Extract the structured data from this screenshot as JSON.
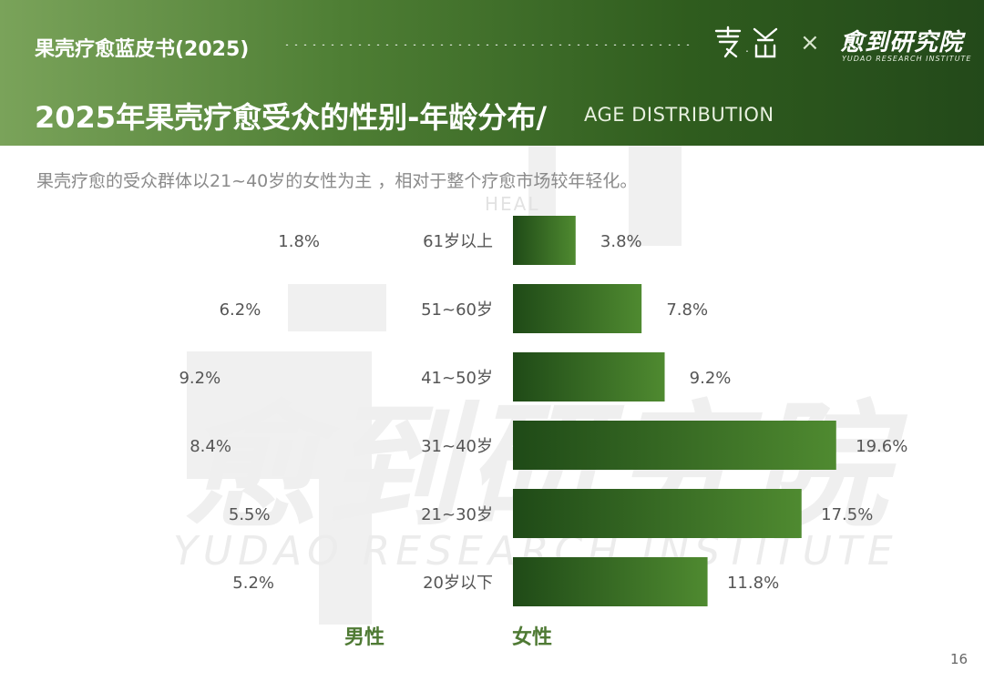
{
  "header": {
    "report_title": "果壳疗愈蓝皮书(2025)",
    "logo_partner_mark": "零愈",
    "logo_separator": "×",
    "logo_brand": "愈到研究院",
    "logo_brand_sub": "YUDAO RESEARCH INSTITUTE",
    "page_title": "2025年果壳疗愈受众的性别-年龄分布/",
    "page_title_en": "AGE DISTRIBUTION"
  },
  "subtitle": "果壳疗愈的受众群体以21~40岁的女性为主 ，相对于整个疗愈市场较年轻化。",
  "watermark": {
    "cn": "愈到研究院",
    "en": "YUDAO RESEARCH INSTITUTE",
    "heal": "HEAL"
  },
  "legend": {
    "male": "男性",
    "female": "女性"
  },
  "page_number": "16",
  "colors": {
    "bar_dark": "#1f4a17",
    "bar_light": "#4f8a30",
    "label_text": "#555555",
    "legend_text": "#4f7a34"
  },
  "chart_data": {
    "type": "bar",
    "categories": [
      "61岁以上",
      "51~60岁",
      "41~50岁",
      "31~40岁",
      "21~30岁",
      "20岁以下"
    ],
    "series": [
      {
        "name": "男性",
        "values": [
          1.8,
          6.2,
          9.2,
          8.4,
          5.5,
          5.2
        ],
        "labels": [
          "1.8%",
          "6.2%",
          "9.2%",
          "8.4%",
          "5.5%",
          "5.2%"
        ]
      },
      {
        "name": "女性",
        "values": [
          3.8,
          7.8,
          9.2,
          19.6,
          17.5,
          11.8
        ],
        "labels": [
          "3.8%",
          "7.8%",
          "9.2%",
          "19.6%",
          "17.5%",
          "11.8%"
        ]
      }
    ],
    "unit": "%"
  }
}
